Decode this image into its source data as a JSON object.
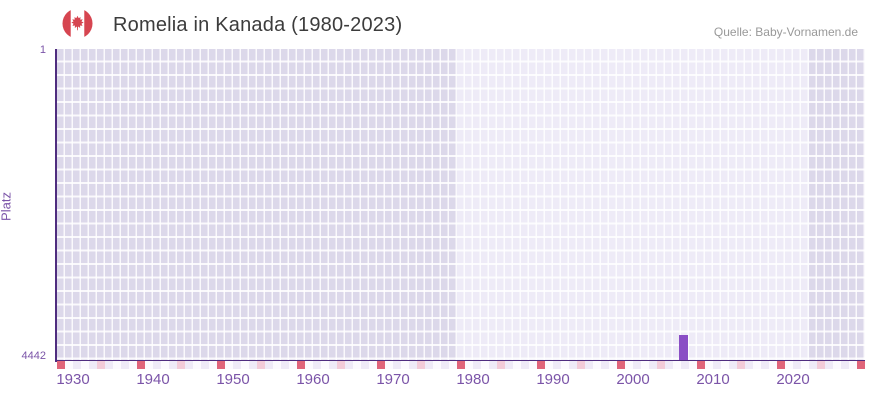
{
  "header": {
    "title": "Romelia in Kanada (1980-2023)",
    "source": "Quelle: Baby-Vornamen.de",
    "flag_icon": "canada-flag-icon"
  },
  "chart_data": {
    "type": "bar",
    "title": "Romelia in Kanada (1980-2023)",
    "ylabel": "Platz",
    "xlabel": "",
    "y_axis": {
      "top_label": "1",
      "bottom_label": "4442",
      "min": 1,
      "max": 4442,
      "inverted": true
    },
    "x_axis": {
      "tick_labels": [
        "1930",
        "1940",
        "1950",
        "1960",
        "1970",
        "1980",
        "1990",
        "2000",
        "2010",
        "2020"
      ],
      "start_year": 1930,
      "end_year": 2030,
      "minor_tick_every": 5,
      "major_tick_every": 10
    },
    "data_year_range": {
      "start": 1980,
      "end": 2023
    },
    "points": [
      {
        "year": 2006,
        "rank": 4085
      }
    ],
    "legend": null,
    "grid": true
  },
  "colors": {
    "bar": "#8a4ec5",
    "axis_line": "#4f2d7f",
    "tick_major": "#e0657a",
    "tick_minor": "#f3ccd8",
    "axis_text": "#7b54a8",
    "band_outside_range": "#dcd8ea",
    "band_data_range": "#eeebf7",
    "title_text": "#3c3c3c",
    "source_text": "#999999",
    "flag_red": "#d64550"
  }
}
